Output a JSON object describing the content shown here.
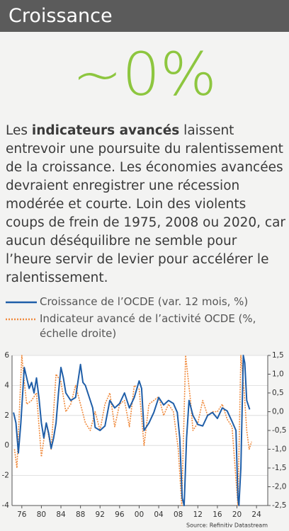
{
  "header": {
    "title": "Croissance"
  },
  "headline": "~0%",
  "body": {
    "before": "Les ",
    "bold": "indicateurs avancés",
    "after": " laissent entrevoir une poursuite du ralentissement de la croissance. Les économies avancées devraient enregistrer une récession modérée et courte. Loin des violents coups de frein de 1975, 2008 ou 2020, car aucun déséquilibre ne semble pour l’heure servir de levier pour accélérer le ralentissement."
  },
  "chart_data": {
    "type": "line",
    "source": "Source: Refinitiv Datastream",
    "xlim": [
      1974,
      2026.3
    ],
    "xticks": [
      {
        "value": 1976,
        "label": "76"
      },
      {
        "value": 1980,
        "label": "80"
      },
      {
        "value": 1984,
        "label": "84"
      },
      {
        "value": 1988,
        "label": "88"
      },
      {
        "value": 1992,
        "label": "92"
      },
      {
        "value": 1996,
        "label": "96"
      },
      {
        "value": 2000,
        "label": "00"
      },
      {
        "value": 2004,
        "label": "04"
      },
      {
        "value": 2008,
        "label": "08"
      },
      {
        "value": 2012,
        "label": "12"
      },
      {
        "value": 2016,
        "label": "16"
      },
      {
        "value": 2020,
        "label": "20"
      },
      {
        "value": 2024,
        "label": "24"
      }
    ],
    "ylim": [
      -4,
      6
    ],
    "yticks": [
      -4,
      -2,
      0,
      2,
      4,
      6
    ],
    "y2lim": [
      -2.5,
      1.5
    ],
    "y2ticks": [
      {
        "value": 1.5,
        "label": "1,5"
      },
      {
        "value": 1,
        "label": "1,0"
      },
      {
        "value": 0.5,
        "label": "0,5"
      },
      {
        "value": 0,
        "label": "0,0"
      },
      {
        "value": -0.5,
        "label": "-0,5"
      },
      {
        "value": -1,
        "label": "-1,0"
      },
      {
        "value": -1.5,
        "label": "-1,5"
      },
      {
        "value": -2,
        "label": "-2,0"
      },
      {
        "value": -2.5,
        "label": "-2,5"
      }
    ],
    "grid": true,
    "series": [
      {
        "name": "Croissance de l’OCDE (var. 12 mois, %)",
        "color": "#1f5ea8",
        "dash": false,
        "x": [
          1974.3,
          1974.8,
          1975.3,
          1975.8,
          1976.5,
          1977,
          1977.5,
          1978,
          1978.5,
          1979,
          1979.5,
          1980,
          1980.5,
          1981,
          1981.5,
          1982,
          1982.5,
          1983,
          1983.5,
          1984,
          1984.5,
          1985,
          1986,
          1987,
          1988,
          1988.5,
          1989,
          1990,
          1990.5,
          1991,
          1992,
          1993,
          1994,
          1995,
          1996,
          1997,
          1998,
          1999,
          2000,
          2000.5,
          2001,
          2002,
          2003,
          2004,
          2005,
          2006,
          2007,
          2007.8,
          2008.3,
          2008.8,
          2009.2,
          2009.7,
          2010.2,
          2011,
          2012,
          2013,
          2014,
          2015,
          2016,
          2017,
          2018,
          2019,
          2019.8,
          2020.2,
          2020.4,
          2020.8,
          2021.3,
          2021.6,
          2022,
          2022.6
        ],
        "values": [
          2.2,
          1.5,
          -0.5,
          1.5,
          5.2,
          4.5,
          3.8,
          4.2,
          3.5,
          4.5,
          3.2,
          1.5,
          0.5,
          1.5,
          0.8,
          -0.2,
          0.5,
          1.5,
          3.5,
          5.2,
          4.5,
          3.5,
          3,
          3.2,
          5.4,
          4.2,
          4,
          3,
          2.5,
          1.2,
          1,
          1.3,
          3,
          2.5,
          2.8,
          3.5,
          2.5,
          3.2,
          4.3,
          3.8,
          1,
          1.5,
          2.2,
          3.2,
          2.7,
          3,
          2.8,
          2.2,
          0.5,
          -3.5,
          -4,
          0.5,
          3,
          2,
          1.4,
          1.3,
          2,
          2.2,
          1.8,
          2.5,
          2.3,
          1.6,
          1,
          -3.5,
          -4,
          -1.5,
          6,
          5.5,
          3,
          2.4
        ]
      },
      {
        "name": "Indicateur avancé de l’activité OCDE (%, échelle droite)",
        "color": "#f08a3c",
        "dash": true,
        "axis": "y2",
        "x": [
          1974.5,
          1975,
          1975.5,
          1976,
          1976.5,
          1977,
          1978,
          1979,
          1980,
          1981,
          1982,
          1983,
          1984,
          1985,
          1986,
          1987,
          1988,
          1989,
          1990,
          1991,
          1992,
          1993,
          1994,
          1995,
          1996,
          1997,
          1998,
          1999,
          2000,
          2001,
          2002,
          2003,
          2004,
          2005,
          2006,
          2007,
          2008,
          2008.7,
          2009.5,
          2010.5,
          2011,
          2012,
          2013,
          2014,
          2015,
          2016,
          2017,
          2018,
          2019,
          2020.2,
          2020.8,
          2021.5,
          2022,
          2022.5,
          2023
        ],
        "values": [
          -1,
          -1.5,
          0,
          1.5,
          0.8,
          0.2,
          0.3,
          0.5,
          -1.2,
          -0.3,
          -1,
          1,
          0.8,
          0,
          0.2,
          0.7,
          0.2,
          -0.3,
          -0.5,
          0,
          -0.5,
          0.2,
          0.5,
          -0.4,
          0.2,
          0.3,
          -0.4,
          0.7,
          0.6,
          -0.9,
          0.2,
          0.3,
          0.4,
          -0.1,
          0.2,
          0,
          -1,
          -2.5,
          1.5,
          0.3,
          -0.5,
          -0.3,
          0.3,
          -0.1,
          0,
          0,
          0.2,
          -0.2,
          -0.4,
          -2.5,
          1.5,
          0.5,
          -0.5,
          -1,
          -0.8
        ]
      }
    ]
  }
}
